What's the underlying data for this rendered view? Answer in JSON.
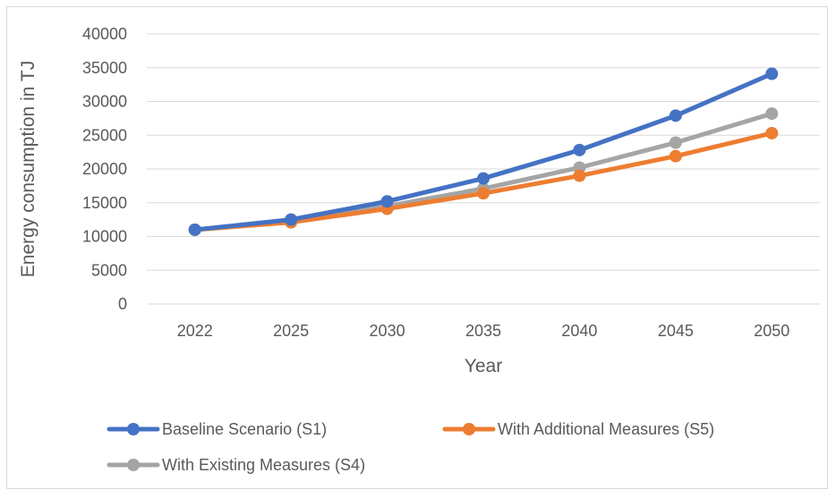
{
  "chart_data": {
    "type": "line",
    "title": "",
    "xlabel": "Year",
    "ylabel": "Energy consumption in TJ",
    "categories": [
      "2022",
      "2025",
      "2030",
      "2035",
      "2040",
      "2045",
      "2050"
    ],
    "ylim": [
      0,
      40000
    ],
    "yticks": [
      0,
      5000,
      10000,
      15000,
      20000,
      25000,
      30000,
      35000,
      40000
    ],
    "grid": true,
    "legend": "bottom",
    "series": [
      {
        "name": "Baseline Scenario (S1)",
        "color": "#4472c4",
        "values": [
          11000,
          12500,
          15200,
          18600,
          22800,
          27900,
          34100
        ]
      },
      {
        "name": "With Additional Measures (S5)",
        "color": "#ed7d31",
        "values": [
          11000,
          12100,
          14100,
          16400,
          19000,
          21900,
          25300
        ]
      },
      {
        "name": "With Existing Measures (S4)",
        "color": "#a5a5a5",
        "values": [
          11000,
          12300,
          14500,
          17100,
          20200,
          23900,
          28200
        ]
      }
    ]
  }
}
